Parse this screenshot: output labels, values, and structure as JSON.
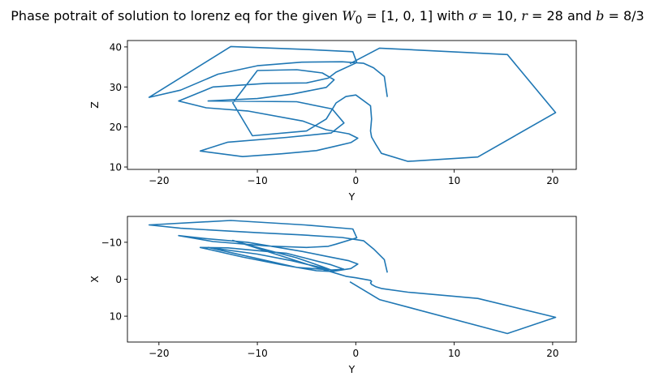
{
  "title": {
    "prefix": "Phase potrait of solution to lorenz eq for the given ",
    "w0_symbol": "W",
    "w0_sub": "0",
    "w0_value": " = [1, 0, 1] with ",
    "sigma_symbol": "σ",
    "sigma_value": " = 10, ",
    "r_symbol": "r",
    "r_value": " = 28 and ",
    "b_symbol": "b",
    "b_value": " = 8/3"
  },
  "colors": {
    "line": "#1f77b4",
    "axes": "#000000"
  },
  "chart_data": [
    {
      "type": "line",
      "xlabel": "Y",
      "ylabel": "Z",
      "xlim": [
        -23.2,
        22.4
      ],
      "ylim": [
        9.4,
        41.6
      ],
      "xticks": [
        -20,
        -10,
        0,
        10,
        20
      ],
      "yticks": [
        10,
        20,
        30,
        40
      ],
      "yaxis_inverted": false,
      "grid": false,
      "series": [
        {
          "x": [
            3.2,
            2.9,
            1.8,
            0.8,
            -1.4,
            -5.5,
            -10.0,
            -14.0,
            -17.8,
            -21.0,
            -12.7,
            -5.2,
            -0.3,
            0.1,
            -2.0,
            -2.8,
            -5.0,
            -9.0,
            -14.5,
            -18.0,
            -15.2,
            -11.0,
            -5.4,
            -3.0,
            -0.7,
            0.2,
            -0.5,
            -2.4,
            -4.0,
            -7.5,
            -11.5,
            -15.8,
            -13.0,
            -7.0,
            -2.5,
            -1.2,
            -2.4,
            -6.0,
            -15.0,
            -10.0,
            -6.5,
            -3.0,
            -2.2,
            -3.4,
            -6.0,
            -10.0,
            -12.5,
            -10.5,
            -5.0,
            -3.0,
            -2.0,
            -1.0,
            0.0,
            1.5,
            1.6,
            1.5,
            1.6,
            2.0,
            2.6,
            5.3,
            12.4,
            20.3,
            15.4,
            2.4,
            -0.6
          ],
          "y": [
            27.5,
            32.6,
            34.8,
            35.9,
            36.3,
            36.2,
            35.3,
            33.2,
            29.2,
            27.4,
            40.1,
            39.4,
            38.8,
            36.1,
            33.7,
            32.2,
            31.0,
            30.9,
            30.0,
            26.5,
            24.8,
            24.0,
            21.5,
            19.3,
            18.3,
            17.2,
            16.1,
            15.0,
            14.1,
            13.3,
            12.6,
            14.0,
            16.2,
            17.4,
            18.5,
            21.0,
            24.5,
            26.3,
            26.5,
            27.1,
            28.2,
            29.9,
            31.8,
            33.5,
            34.3,
            34.1,
            26.0,
            17.8,
            19.0,
            22.0,
            26.0,
            27.6,
            28.0,
            25.3,
            22.0,
            19.0,
            17.5,
            15.8,
            13.4,
            11.4,
            12.5,
            23.6,
            38.1,
            39.7,
            35.8
          ]
        }
      ]
    },
    {
      "type": "line",
      "xlabel": "Y",
      "ylabel": "X",
      "xlim": [
        -23.2,
        22.4
      ],
      "ylim": [
        17.0,
        -17.0
      ],
      "xticks": [
        -20,
        -10,
        0,
        10,
        20
      ],
      "yticks": [
        -10,
        0,
        10
      ],
      "yaxis_inverted": true,
      "grid": false,
      "series": [
        {
          "x": [
            3.2,
            2.9,
            1.8,
            0.8,
            -1.4,
            -5.5,
            -10.0,
            -14.0,
            -17.8,
            -21.0,
            -12.7,
            -5.2,
            -0.3,
            0.1,
            -2.0,
            -2.8,
            -5.0,
            -9.0,
            -14.5,
            -18.0,
            -15.2,
            -11.0,
            -5.4,
            -3.0,
            -0.7,
            0.2,
            -0.5,
            -2.4,
            -4.0,
            -7.5,
            -11.5,
            -15.8,
            -13.0,
            -7.0,
            -2.5,
            -1.2,
            -2.4,
            -6.0,
            -15.0,
            -10.0,
            -6.5,
            -3.0,
            -2.2,
            -3.4,
            -6.0,
            -10.0,
            -12.5,
            -10.5,
            -5.0,
            -3.0,
            -2.0,
            -1.0,
            0.0,
            1.5,
            1.6,
            1.5,
            1.6,
            2.0,
            2.6,
            5.3,
            12.4,
            20.3,
            15.4,
            2.4,
            -0.6
          ],
          "y": [
            -1.8,
            -5.3,
            -8.2,
            -10.4,
            -11.3,
            -12.0,
            -12.6,
            -13.2,
            -13.8,
            -14.7,
            -15.9,
            -14.7,
            -13.6,
            -11.2,
            -9.5,
            -8.9,
            -8.6,
            -9.0,
            -10.2,
            -11.8,
            -11.0,
            -10.0,
            -7.5,
            -6.2,
            -5.0,
            -4.1,
            -2.9,
            -2.1,
            -2.3,
            -3.9,
            -6.0,
            -8.6,
            -8.5,
            -7.0,
            -3.9,
            -2.7,
            -2.5,
            -3.2,
            -8.6,
            -6.8,
            -5.0,
            -2.8,
            -2.2,
            -3.4,
            -5.8,
            -8.6,
            -10.5,
            -8.8,
            -4.1,
            -2.4,
            -1.6,
            -0.8,
            -0.4,
            0.3,
            0.6,
            1.0,
            1.4,
            2.0,
            2.5,
            3.5,
            5.2,
            10.3,
            14.7,
            5.5,
            0.7
          ]
        }
      ]
    }
  ]
}
